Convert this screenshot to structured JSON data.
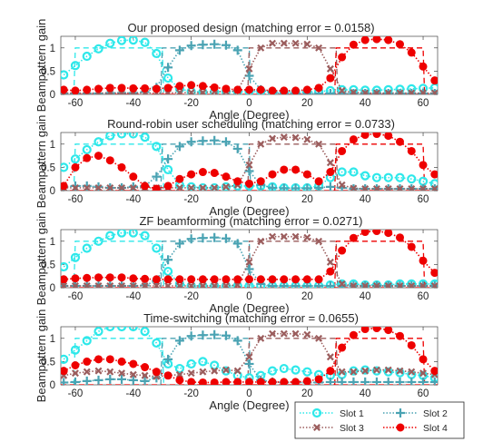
{
  "chart_data": {
    "type": "line",
    "xlabel": "Angle (Degree)",
    "ylabel": "Beampattern gain",
    "xlim": [
      -65,
      65
    ],
    "ylim": [
      0,
      1.25
    ],
    "xticks": [
      -60,
      -40,
      -20,
      0,
      20,
      40,
      60
    ],
    "yticks": [
      0,
      0.5,
      1
    ],
    "legend": {
      "placement": "bottom-right",
      "columns": 2,
      "entries": [
        "Slot 1",
        "Slot 2",
        "Slot 3",
        "Slot 4"
      ]
    },
    "series_styles": [
      {
        "name": "Slot 1",
        "color": "#2ee8ea",
        "marker": "circle"
      },
      {
        "name": "Slot 2",
        "color": "#4aa3b3",
        "marker": "plus"
      },
      {
        "name": "Slot 3",
        "color": "#9b5d5d",
        "marker": "cross"
      },
      {
        "name": "Slot 4",
        "color": "#ee0000",
        "marker": "filled-circle"
      }
    ],
    "target_beampattern": {
      "style": "dashed",
      "slots": [
        {
          "name": "Slot 1",
          "range": [
            -60,
            -30
          ],
          "value": 1
        },
        {
          "name": "Slot 2",
          "range": [
            -30,
            0
          ],
          "value": 1
        },
        {
          "name": "Slot 3",
          "range": [
            0,
            30
          ],
          "value": 1
        },
        {
          "name": "Slot 4",
          "range": [
            30,
            60
          ],
          "value": 1
        }
      ]
    },
    "panels": [
      {
        "title": "Our proposed design (matching error = 0.0158)",
        "x": [
          -64,
          -60,
          -56,
          -52,
          -48,
          -44,
          -40,
          -36,
          -32,
          -28,
          -24,
          -20,
          -16,
          -12,
          -8,
          -4,
          0,
          4,
          8,
          12,
          16,
          20,
          24,
          28,
          32,
          36,
          40,
          44,
          48,
          52,
          56,
          60,
          64
        ],
        "series": [
          {
            "name": "Slot 1",
            "values": [
              0.42,
              0.62,
              0.82,
              0.98,
              1.1,
              1.16,
              1.17,
              1.12,
              0.88,
              0.35,
              0.12,
              0.06,
              0.05,
              0.05,
              0.06,
              0.06,
              0.06,
              0.06,
              0.05,
              0.05,
              0.05,
              0.05,
              0.06,
              0.08,
              0.1,
              0.1,
              0.09,
              0.09,
              0.1,
              0.11,
              0.12,
              0.13,
              0.14
            ]
          },
          {
            "name": "Slot 2",
            "values": [
              0.02,
              0.02,
              0.02,
              0.02,
              0.03,
              0.03,
              0.03,
              0.05,
              0.15,
              0.58,
              0.95,
              1.05,
              1.07,
              1.08,
              1.06,
              0.95,
              0.4,
              0.1,
              0.04,
              0.02,
              0.02,
              0.02,
              0.02,
              0.02,
              0.02,
              0.02,
              0.02,
              0.02,
              0.02,
              0.02,
              0.02,
              0.02,
              0.02
            ]
          },
          {
            "name": "Slot 3",
            "values": [
              0.03,
              0.03,
              0.03,
              0.03,
              0.03,
              0.03,
              0.03,
              0.03,
              0.03,
              0.03,
              0.04,
              0.04,
              0.04,
              0.06,
              0.06,
              0.08,
              0.55,
              1.0,
              1.1,
              1.1,
              1.1,
              1.08,
              1.0,
              0.55,
              0.08,
              0.04,
              0.03,
              0.03,
              0.03,
              0.03,
              0.03,
              0.03,
              0.03
            ]
          },
          {
            "name": "Slot 4",
            "values": [
              0.1,
              0.08,
              0.1,
              0.12,
              0.14,
              0.14,
              0.13,
              0.13,
              0.12,
              0.14,
              0.18,
              0.2,
              0.18,
              0.15,
              0.12,
              0.1,
              0.1,
              0.1,
              0.08,
              0.08,
              0.08,
              0.1,
              0.14,
              0.35,
              0.8,
              1.07,
              1.17,
              1.19,
              1.17,
              1.08,
              0.9,
              0.6,
              0.3
            ]
          }
        ]
      },
      {
        "title": "Round-robin user scheduling (matching error = 0.0733)",
        "x": [
          -64,
          -60,
          -56,
          -52,
          -48,
          -44,
          -40,
          -36,
          -32,
          -28,
          -24,
          -20,
          -16,
          -12,
          -8,
          -4,
          0,
          4,
          8,
          12,
          16,
          20,
          24,
          28,
          32,
          36,
          40,
          44,
          48,
          52,
          56,
          60,
          64
        ],
        "series": [
          {
            "name": "Slot 1",
            "values": [
              0.5,
              0.68,
              0.88,
              1.05,
              1.18,
              1.22,
              1.22,
              1.15,
              0.95,
              0.45,
              0.12,
              0.08,
              0.06,
              0.06,
              0.08,
              0.1,
              0.1,
              0.1,
              0.08,
              0.06,
              0.06,
              0.06,
              0.1,
              0.28,
              0.4,
              0.4,
              0.32,
              0.28,
              0.28,
              0.28,
              0.25,
              0.2,
              0.15
            ]
          },
          {
            "name": "Slot 2",
            "values": [
              0.08,
              0.1,
              0.1,
              0.08,
              0.06,
              0.06,
              0.08,
              0.1,
              0.3,
              0.68,
              0.95,
              1.05,
              1.07,
              1.08,
              1.05,
              0.9,
              0.42,
              0.12,
              0.06,
              0.05,
              0.05,
              0.05,
              0.06,
              0.08,
              0.06,
              0.04,
              0.04,
              0.04,
              0.04,
              0.04,
              0.04,
              0.04,
              0.04
            ]
          },
          {
            "name": "Slot 3",
            "values": [
              0.06,
              0.06,
              0.06,
              0.06,
              0.06,
              0.06,
              0.06,
              0.06,
              0.06,
              0.06,
              0.06,
              0.06,
              0.06,
              0.06,
              0.08,
              0.12,
              0.55,
              1.0,
              1.12,
              1.15,
              1.14,
              1.1,
              1.0,
              0.6,
              0.12,
              0.05,
              0.04,
              0.04,
              0.04,
              0.04,
              0.04,
              0.04,
              0.04
            ]
          },
          {
            "name": "Slot 4",
            "values": [
              0.1,
              0.5,
              0.7,
              0.75,
              0.65,
              0.5,
              0.3,
              0.1,
              0.04,
              0.1,
              0.25,
              0.35,
              0.4,
              0.38,
              0.3,
              0.2,
              0.15,
              0.2,
              0.35,
              0.45,
              0.45,
              0.35,
              0.2,
              0.4,
              0.85,
              1.1,
              1.2,
              1.22,
              1.18,
              1.05,
              0.85,
              0.55,
              0.35
            ]
          }
        ]
      },
      {
        "title": "ZF beamforming (matching error = 0.0271)",
        "x": [
          -64,
          -60,
          -56,
          -52,
          -48,
          -44,
          -40,
          -36,
          -32,
          -28,
          -24,
          -20,
          -16,
          -12,
          -8,
          -4,
          0,
          4,
          8,
          12,
          16,
          20,
          24,
          28,
          32,
          36,
          40,
          44,
          48,
          52,
          56,
          60,
          64
        ],
        "series": [
          {
            "name": "Slot 1",
            "values": [
              0.45,
              0.65,
              0.85,
              1.0,
              1.12,
              1.18,
              1.18,
              1.12,
              0.85,
              0.35,
              0.08,
              0.04,
              0.04,
              0.04,
              0.04,
              0.04,
              0.04,
              0.04,
              0.04,
              0.04,
              0.04,
              0.04,
              0.04,
              0.06,
              0.08,
              0.08,
              0.06,
              0.06,
              0.06,
              0.08,
              0.08,
              0.08,
              0.08
            ]
          },
          {
            "name": "Slot 2",
            "values": [
              0.04,
              0.04,
              0.04,
              0.04,
              0.04,
              0.04,
              0.04,
              0.05,
              0.15,
              0.6,
              0.95,
              1.05,
              1.07,
              1.08,
              1.06,
              0.95,
              0.4,
              0.08,
              0.04,
              0.04,
              0.04,
              0.04,
              0.04,
              0.04,
              0.04,
              0.04,
              0.04,
              0.04,
              0.04,
              0.04,
              0.04,
              0.04,
              0.04
            ]
          },
          {
            "name": "Slot 3",
            "values": [
              0.04,
              0.04,
              0.04,
              0.04,
              0.04,
              0.04,
              0.04,
              0.04,
              0.04,
              0.04,
              0.04,
              0.04,
              0.04,
              0.04,
              0.04,
              0.06,
              0.55,
              1.0,
              1.1,
              1.1,
              1.1,
              1.08,
              1.0,
              0.55,
              0.08,
              0.04,
              0.04,
              0.04,
              0.04,
              0.04,
              0.04,
              0.04,
              0.04
            ]
          },
          {
            "name": "Slot 4",
            "values": [
              0.18,
              0.2,
              0.21,
              0.22,
              0.22,
              0.22,
              0.2,
              0.19,
              0.18,
              0.18,
              0.18,
              0.18,
              0.18,
              0.18,
              0.18,
              0.18,
              0.18,
              0.18,
              0.18,
              0.18,
              0.18,
              0.18,
              0.18,
              0.35,
              0.8,
              1.07,
              1.2,
              1.22,
              1.18,
              1.08,
              0.88,
              0.58,
              0.32
            ]
          }
        ]
      },
      {
        "title": "Time-switching (matching error = 0.0655)",
        "x": [
          -64,
          -60,
          -56,
          -52,
          -48,
          -44,
          -40,
          -36,
          -32,
          -28,
          -24,
          -20,
          -16,
          -12,
          -8,
          -4,
          0,
          4,
          8,
          12,
          16,
          20,
          24,
          28,
          32,
          36,
          40,
          44,
          48,
          52,
          56,
          60,
          64
        ],
        "series": [
          {
            "name": "Slot 1",
            "values": [
              0.55,
              0.75,
              0.95,
              1.15,
              1.3,
              1.35,
              1.3,
              1.15,
              0.9,
              0.45,
              0.35,
              0.45,
              0.5,
              0.42,
              0.3,
              0.2,
              0.15,
              0.2,
              0.3,
              0.35,
              0.32,
              0.28,
              0.22,
              0.2,
              0.22,
              0.3,
              0.32,
              0.3,
              0.28,
              0.26,
              0.22,
              0.2,
              0.15
            ]
          },
          {
            "name": "Slot 2",
            "values": [
              0.05,
              0.06,
              0.08,
              0.1,
              0.12,
              0.12,
              0.1,
              0.08,
              0.15,
              0.55,
              0.95,
              1.05,
              1.07,
              1.08,
              1.06,
              0.95,
              0.45,
              0.1,
              0.06,
              0.05,
              0.05,
              0.05,
              0.05,
              0.06,
              0.06,
              0.06,
              0.06,
              0.06,
              0.06,
              0.06,
              0.06,
              0.06,
              0.06
            ]
          },
          {
            "name": "Slot 3",
            "values": [
              0.2,
              0.25,
              0.28,
              0.3,
              0.28,
              0.25,
              0.22,
              0.2,
              0.18,
              0.2,
              0.22,
              0.25,
              0.28,
              0.3,
              0.32,
              0.3,
              0.6,
              1.0,
              1.1,
              1.1,
              1.1,
              1.08,
              1.0,
              0.6,
              0.28,
              0.28,
              0.3,
              0.32,
              0.32,
              0.3,
              0.28,
              0.25,
              0.22
            ]
          },
          {
            "name": "Slot 4",
            "values": [
              0.3,
              0.42,
              0.5,
              0.55,
              0.55,
              0.5,
              0.45,
              0.38,
              0.28,
              0.2,
              0.1,
              0.06,
              0.05,
              0.05,
              0.06,
              0.06,
              0.06,
              0.06,
              0.06,
              0.06,
              0.06,
              0.08,
              0.12,
              0.3,
              0.8,
              1.07,
              1.2,
              1.22,
              1.18,
              1.05,
              0.85,
              0.55,
              0.3
            ]
          }
        ]
      }
    ]
  }
}
